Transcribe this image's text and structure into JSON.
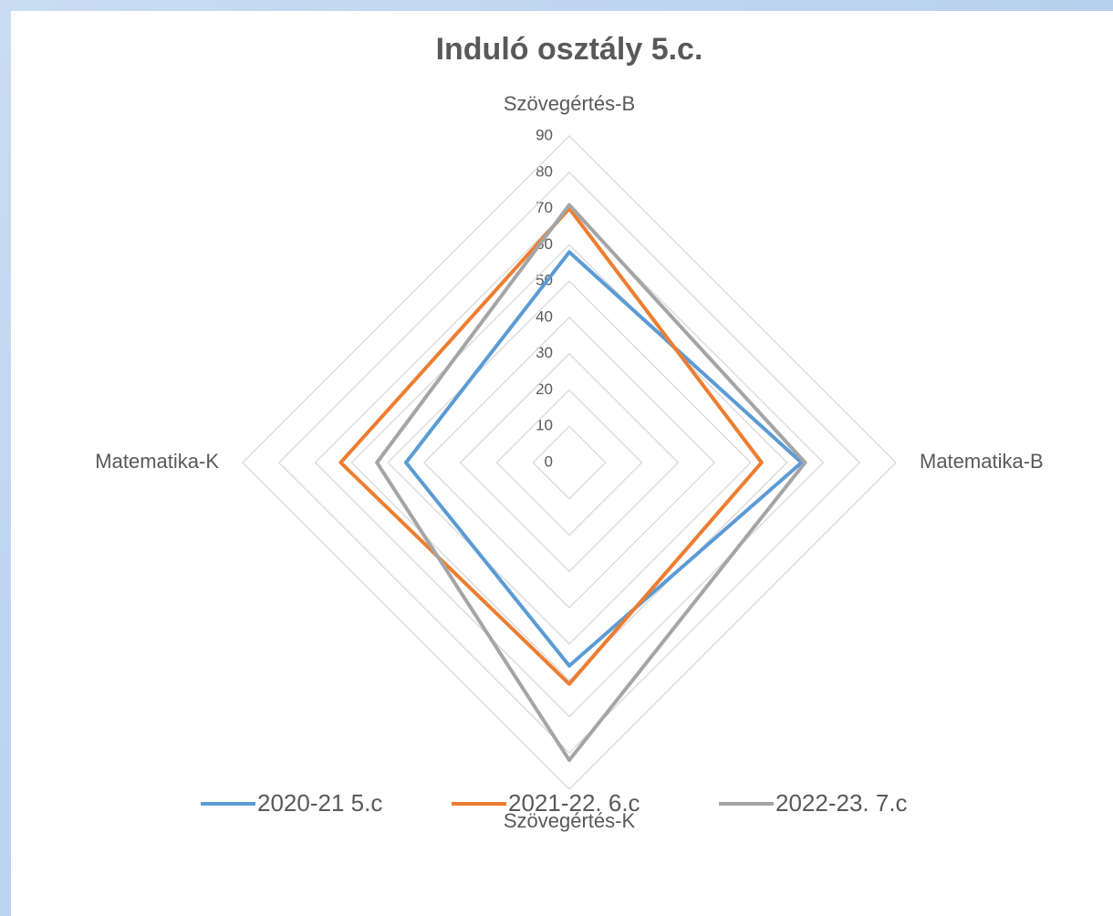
{
  "chart_data": {
    "type": "radar",
    "title": "Induló osztály 5.c.",
    "categories": [
      "Szövegértés-B",
      "Matematika-B",
      "Szövegértés-K",
      "Matematika-K"
    ],
    "series": [
      {
        "name": "2020-21 5.c",
        "color": "#5b9bd5",
        "values": [
          58,
          64,
          56,
          45
        ]
      },
      {
        "name": "2021-22. 6.c",
        "color": "#ed7d31",
        "values": [
          70,
          53,
          61,
          63
        ]
      },
      {
        "name": "2022-23. 7.c",
        "color": "#a5a5a5",
        "values": [
          71,
          65,
          82,
          53
        ]
      }
    ],
    "ylim": [
      0,
      90
    ],
    "yticks": [
      0,
      10,
      20,
      30,
      40,
      50,
      60,
      70,
      80,
      90
    ],
    "grid": true,
    "legend": "bottom"
  }
}
